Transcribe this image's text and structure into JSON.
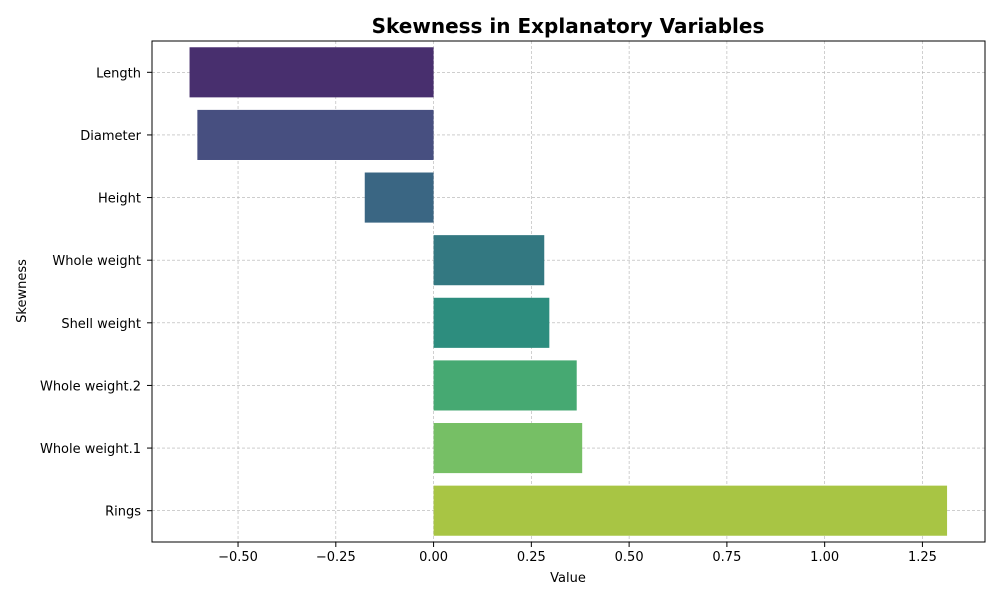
{
  "chart_data": {
    "type": "bar",
    "orientation": "horizontal",
    "title": "Skewness in Explanatory Variables",
    "xlabel": "Value",
    "ylabel": "Skewness",
    "xlim": [
      -0.72,
      1.41
    ],
    "xticks": [
      -0.5,
      -0.25,
      0.0,
      0.25,
      0.5,
      0.75,
      1.0,
      1.25
    ],
    "xtick_labels": [
      "−0.50",
      "−0.25",
      "0.00",
      "0.25",
      "0.50",
      "0.75",
      "1.00",
      "1.25"
    ],
    "grid": true,
    "categories": [
      "Length",
      "Diameter",
      "Height",
      "Whole weight",
      "Shell weight",
      "Whole weight.2",
      "Whole weight.1",
      "Rings"
    ],
    "values": [
      -0.624,
      -0.604,
      -0.176,
      0.283,
      0.296,
      0.366,
      0.38,
      1.313
    ],
    "colors": [
      "#482F6E",
      "#474F80",
      "#3A6683",
      "#337881",
      "#2D8D7E",
      "#46A972",
      "#76BF65",
      "#A8C544"
    ]
  }
}
